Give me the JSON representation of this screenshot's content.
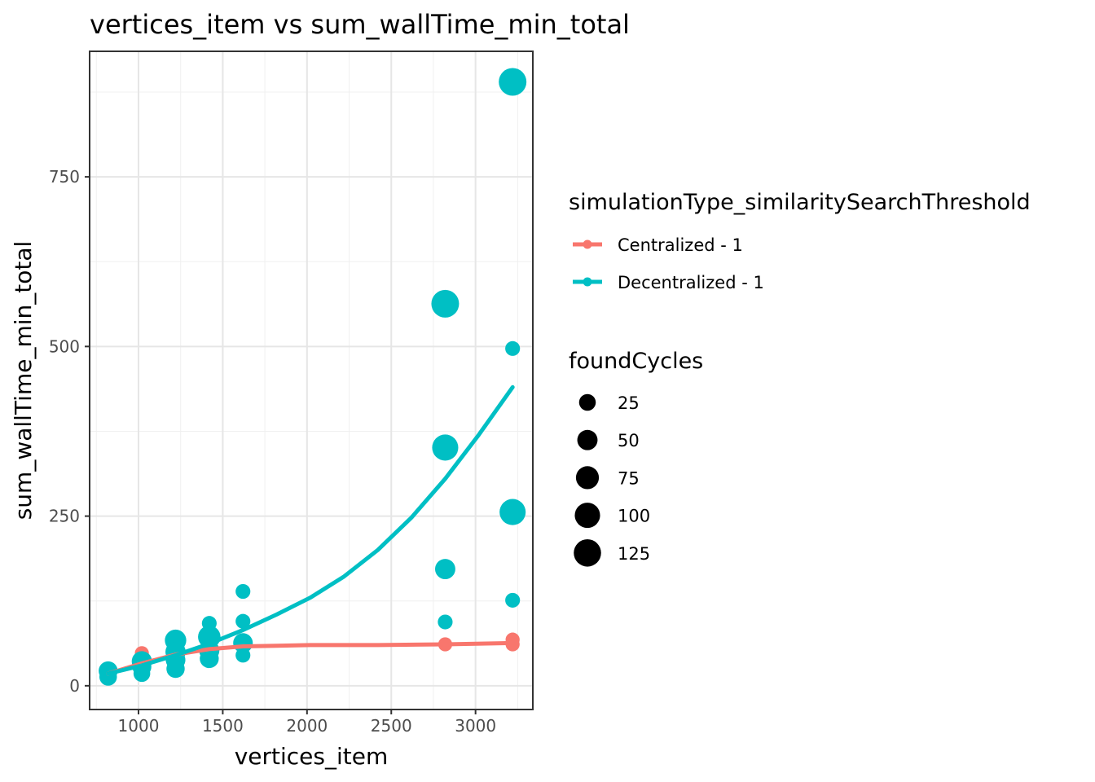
{
  "chart_data": {
    "type": "scatter",
    "title": "vertices_item  vs  sum_wallTime_min_total",
    "xlabel": "vertices_item",
    "ylabel": "sum_wallTime_min_total",
    "xlim": [
      710,
      3340
    ],
    "ylim": [
      -35,
      935
    ],
    "x_ticks": [
      1000,
      1500,
      2000,
      2500,
      3000
    ],
    "y_ticks": [
      0,
      250,
      500,
      750
    ],
    "x_tick_labels": [
      "1000",
      "1500",
      "2000",
      "2500",
      "3000"
    ],
    "y_tick_labels": [
      "0",
      "250",
      "500",
      "750"
    ],
    "grid": true,
    "legend_position": "right",
    "color_legend": {
      "title": "simulationType_similaritySearchThreshold",
      "entries": [
        "Centralized - 1",
        "Decentralized - 1"
      ]
    },
    "size_legend": {
      "title": "foundCycles",
      "values": [
        25,
        50,
        75,
        100,
        125
      ],
      "labels": [
        "25",
        "50",
        "75",
        "100",
        "125"
      ]
    },
    "series": [
      {
        "name": "Centralized - 1",
        "color": "#F8766D",
        "points": [
          {
            "x": 820,
            "y": 15,
            "size": 10
          },
          {
            "x": 820,
            "y": 20,
            "size": 12
          },
          {
            "x": 1020,
            "y": 48,
            "size": 12
          },
          {
            "x": 1020,
            "y": 32,
            "size": 12
          },
          {
            "x": 1220,
            "y": 58,
            "size": 12
          },
          {
            "x": 1220,
            "y": 45,
            "size": 10
          },
          {
            "x": 1420,
            "y": 55,
            "size": 12
          },
          {
            "x": 1620,
            "y": 57,
            "size": 12
          },
          {
            "x": 2820,
            "y": 61,
            "size": 12
          },
          {
            "x": 3220,
            "y": 68,
            "size": 12
          },
          {
            "x": 3220,
            "y": 61,
            "size": 12
          }
        ],
        "trend": [
          {
            "x": 820,
            "y": 18
          },
          {
            "x": 1020,
            "y": 33
          },
          {
            "x": 1220,
            "y": 46
          },
          {
            "x": 1420,
            "y": 54
          },
          {
            "x": 1620,
            "y": 58
          },
          {
            "x": 1820,
            "y": 59
          },
          {
            "x": 2020,
            "y": 60
          },
          {
            "x": 2420,
            "y": 60
          },
          {
            "x": 2820,
            "y": 61
          },
          {
            "x": 3220,
            "y": 63
          }
        ]
      },
      {
        "name": "Decentralized - 1",
        "color": "#00BFC4",
        "points": [
          {
            "x": 820,
            "y": 22,
            "size": 40
          },
          {
            "x": 820,
            "y": 13,
            "size": 30
          },
          {
            "x": 1020,
            "y": 36,
            "size": 50
          },
          {
            "x": 1020,
            "y": 28,
            "size": 40
          },
          {
            "x": 1020,
            "y": 18,
            "size": 25
          },
          {
            "x": 1220,
            "y": 67,
            "size": 60
          },
          {
            "x": 1220,
            "y": 50,
            "size": 50
          },
          {
            "x": 1220,
            "y": 38,
            "size": 45
          },
          {
            "x": 1220,
            "y": 25,
            "size": 35
          },
          {
            "x": 1420,
            "y": 92,
            "size": 15
          },
          {
            "x": 1420,
            "y": 72,
            "size": 70
          },
          {
            "x": 1420,
            "y": 52,
            "size": 50
          },
          {
            "x": 1420,
            "y": 40,
            "size": 40
          },
          {
            "x": 1620,
            "y": 139,
            "size": 15
          },
          {
            "x": 1620,
            "y": 95,
            "size": 15
          },
          {
            "x": 1620,
            "y": 63,
            "size": 45
          },
          {
            "x": 1620,
            "y": 45,
            "size": 15
          },
          {
            "x": 2820,
            "y": 563,
            "size": 130
          },
          {
            "x": 2820,
            "y": 351,
            "size": 110
          },
          {
            "x": 2820,
            "y": 172,
            "size": 50
          },
          {
            "x": 2820,
            "y": 94,
            "size": 15
          },
          {
            "x": 3220,
            "y": 890,
            "size": 130
          },
          {
            "x": 3220,
            "y": 497,
            "size": 15
          },
          {
            "x": 3220,
            "y": 256,
            "size": 110
          },
          {
            "x": 3220,
            "y": 126,
            "size": 15
          }
        ],
        "trend": [
          {
            "x": 820,
            "y": 18
          },
          {
            "x": 1020,
            "y": 30
          },
          {
            "x": 1220,
            "y": 45
          },
          {
            "x": 1420,
            "y": 62
          },
          {
            "x": 1620,
            "y": 82
          },
          {
            "x": 1820,
            "y": 105
          },
          {
            "x": 2020,
            "y": 130
          },
          {
            "x": 2220,
            "y": 161
          },
          {
            "x": 2420,
            "y": 200
          },
          {
            "x": 2620,
            "y": 248
          },
          {
            "x": 2820,
            "y": 305
          },
          {
            "x": 3020,
            "y": 370
          },
          {
            "x": 3220,
            "y": 440
          }
        ]
      }
    ]
  }
}
